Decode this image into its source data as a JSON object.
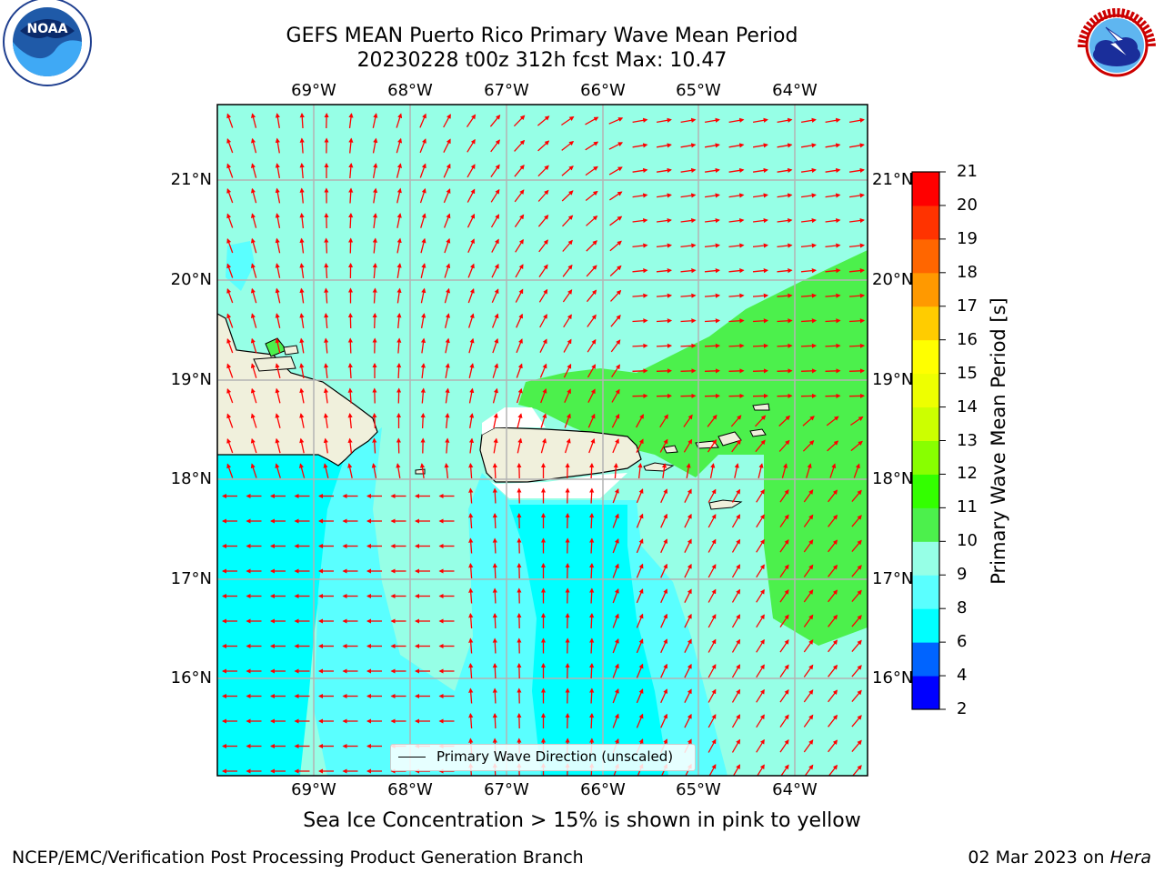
{
  "header": {
    "title_line1": "GEFS MEAN Puerto Rico Primary Wave Mean Period",
    "title_line2": "20230228 t00z 312h fcst   Max: 10.47"
  },
  "logos": {
    "left": "NOAA",
    "right": "NATIONAL WEATHER SERVICE"
  },
  "map": {
    "lon_ticks": [
      "69°W",
      "68°W",
      "67°W",
      "66°W",
      "65°W",
      "64°W"
    ],
    "lat_ticks": [
      "21°N",
      "20°N",
      "19°N",
      "18°N",
      "17°N",
      "16°N"
    ],
    "legend_label": "Primary Wave Direction (unscaled)",
    "arrow_color": "#ff0000"
  },
  "colorbar": {
    "label": "Primary Wave Mean Period [s]",
    "ticks": [
      "2",
      "4",
      "6",
      "8",
      "9",
      "10",
      "11",
      "12",
      "13",
      "14",
      "15",
      "16",
      "17",
      "18",
      "19",
      "20",
      "21"
    ],
    "colors": [
      "#0000ff",
      "#0064ff",
      "#00ffff",
      "#5affff",
      "#96ffe6",
      "#4cf04c",
      "#33ff00",
      "#88ff00",
      "#ccff00",
      "#eeff00",
      "#ffff00",
      "#ffcc00",
      "#ff9900",
      "#ff6600",
      "#ff3300",
      "#ff0000"
    ]
  },
  "caption": "Sea Ice Concentration > 15% is shown in pink to yellow",
  "footer": {
    "left": "NCEP/EMC/Verification Post Processing Product Generation Branch",
    "right_date": "02 Mar 2023 on ",
    "right_host": "Hera"
  }
}
